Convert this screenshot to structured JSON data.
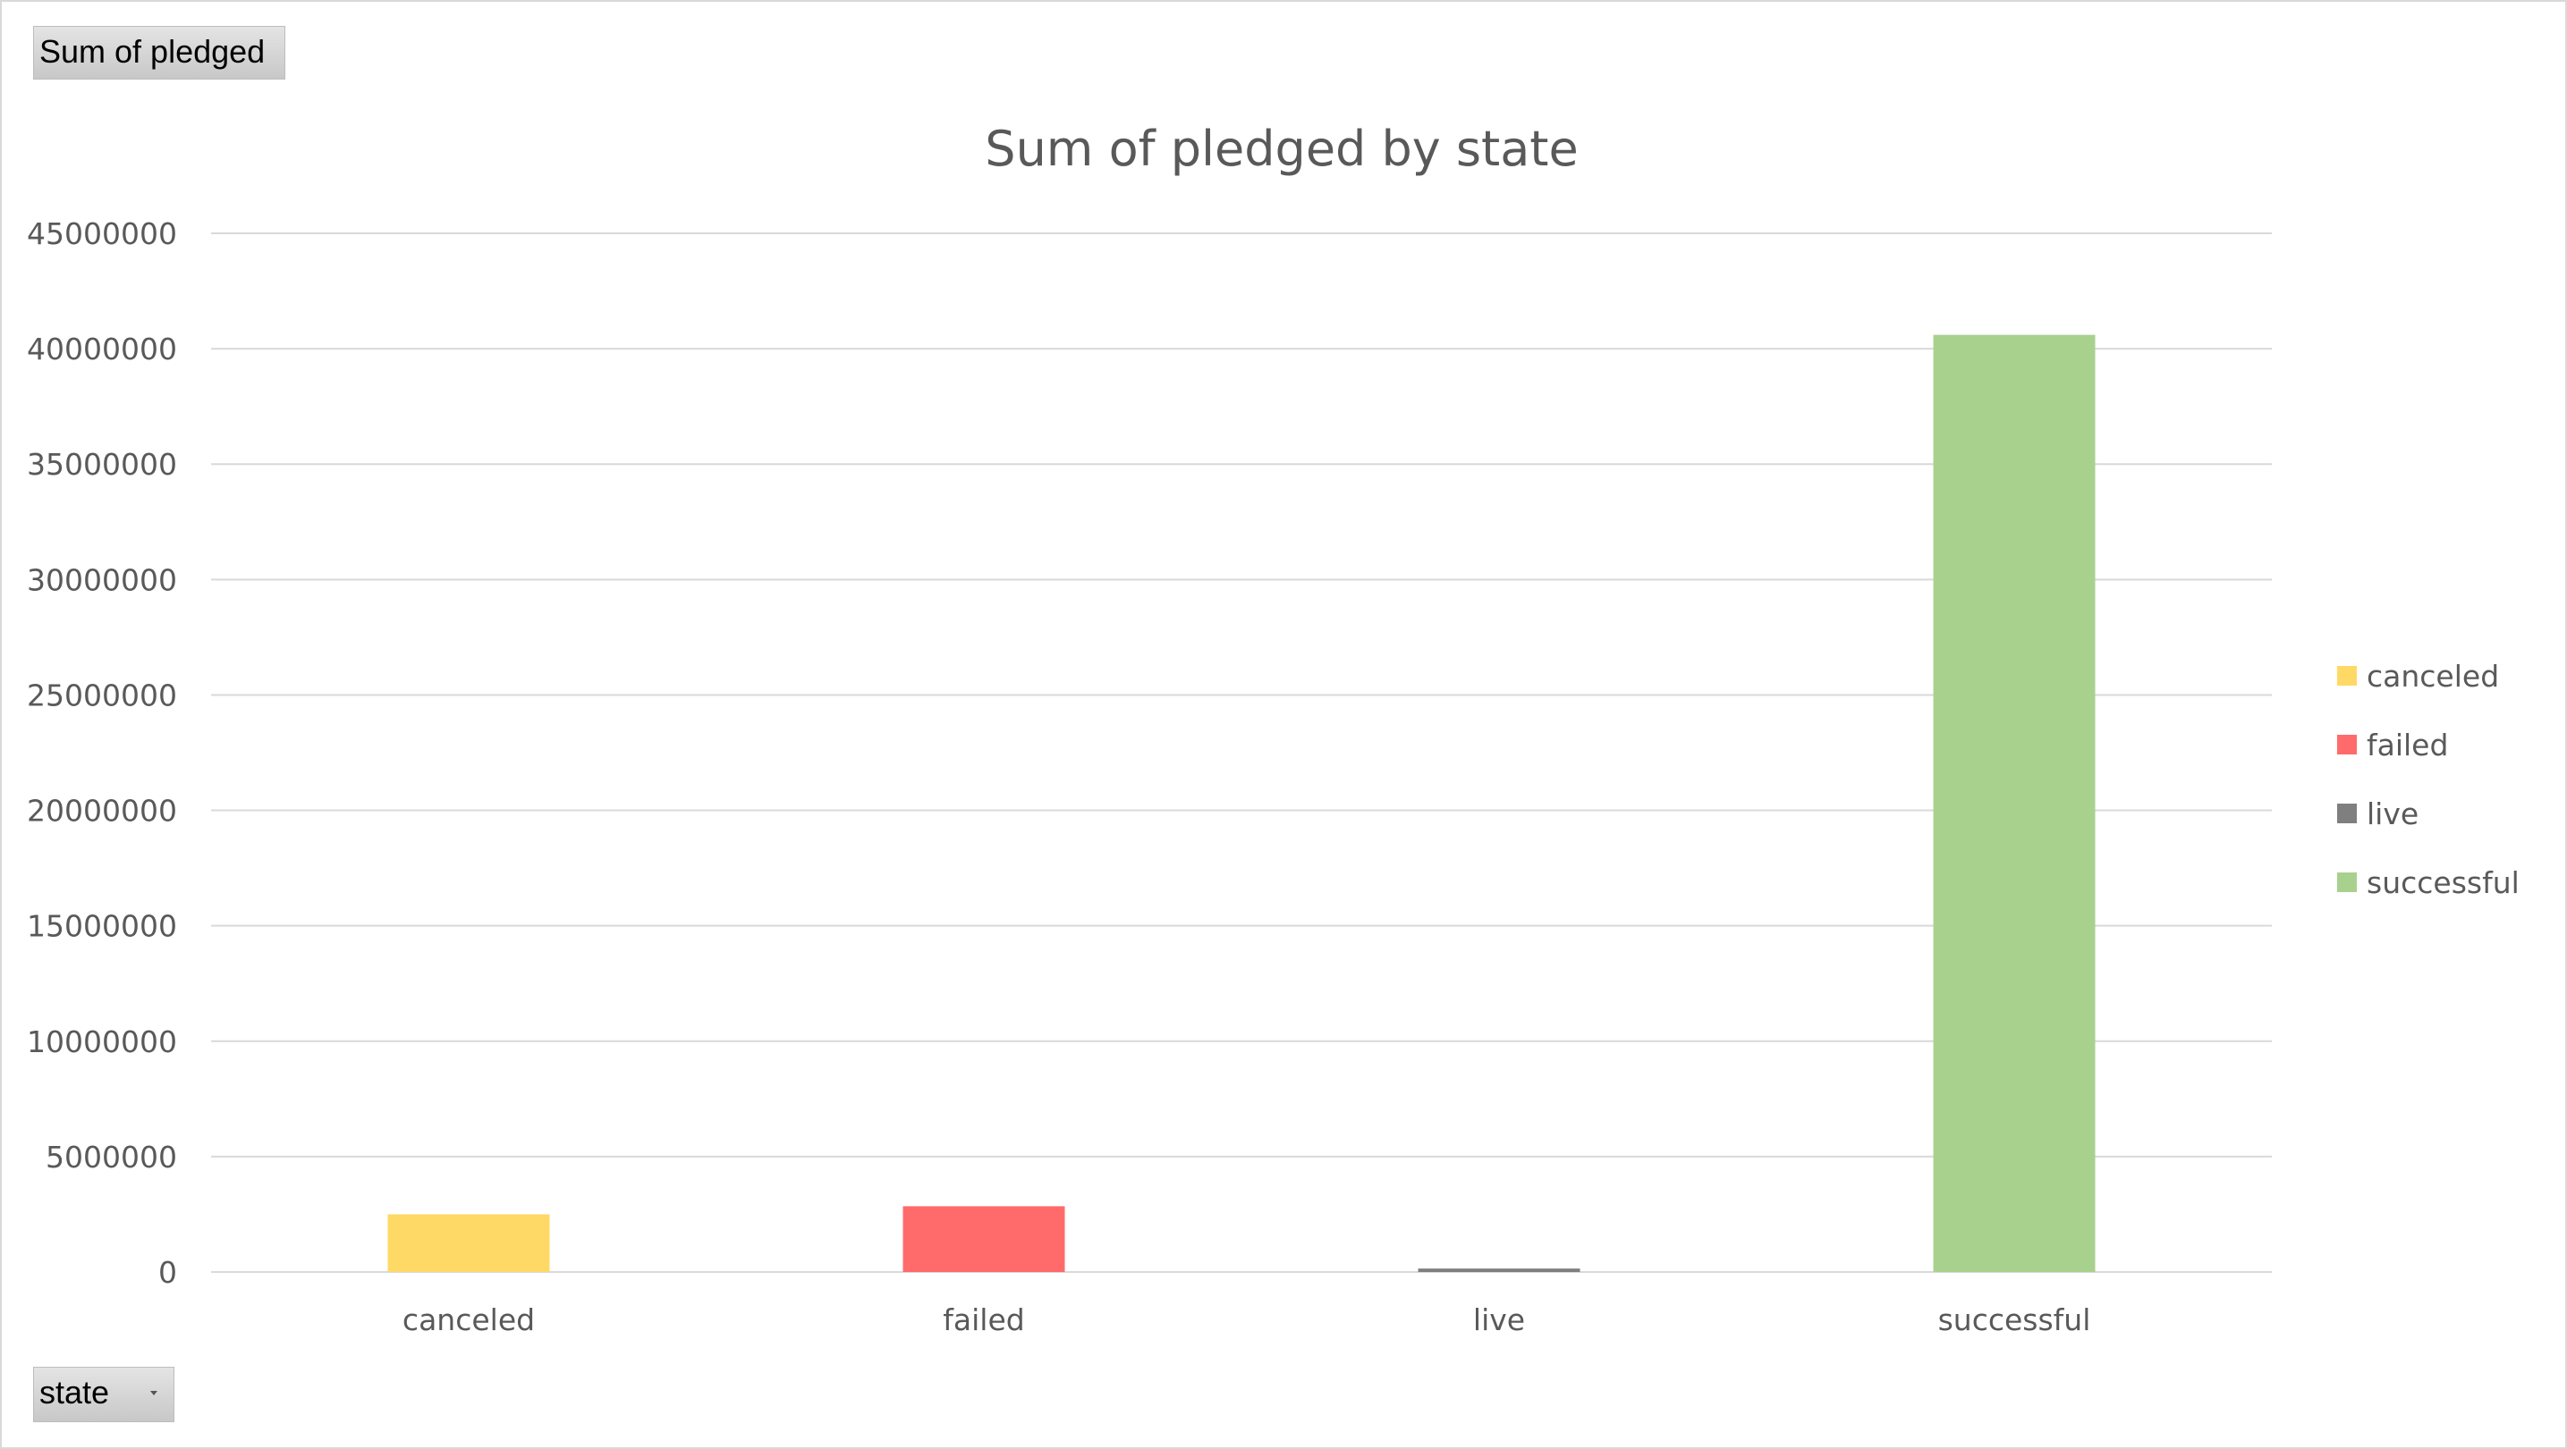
{
  "pivot": {
    "value_field_label": "Sum of pledged",
    "axis_field_label": "state"
  },
  "chart_data": {
    "type": "bar",
    "title": "Sum of pledged by state",
    "xlabel": "",
    "ylabel": "",
    "categories": [
      "canceled",
      "failed",
      "live",
      "successful"
    ],
    "values": [
      2500000,
      2850000,
      150000,
      40600000
    ],
    "colors": [
      "#FFD966",
      "#FF6B6B",
      "#7F7F7F",
      "#A9D18E"
    ],
    "ylim": [
      0,
      45000000
    ],
    "yticks": [
      "0",
      "5000000",
      "10000000",
      "15000000",
      "20000000",
      "25000000",
      "30000000",
      "35000000",
      "40000000",
      "45000000"
    ],
    "grid": true,
    "gridline_color": "#d9d9d9",
    "legend": {
      "position": "right",
      "entries": [
        "canceled",
        "failed",
        "live",
        "successful"
      ]
    }
  }
}
